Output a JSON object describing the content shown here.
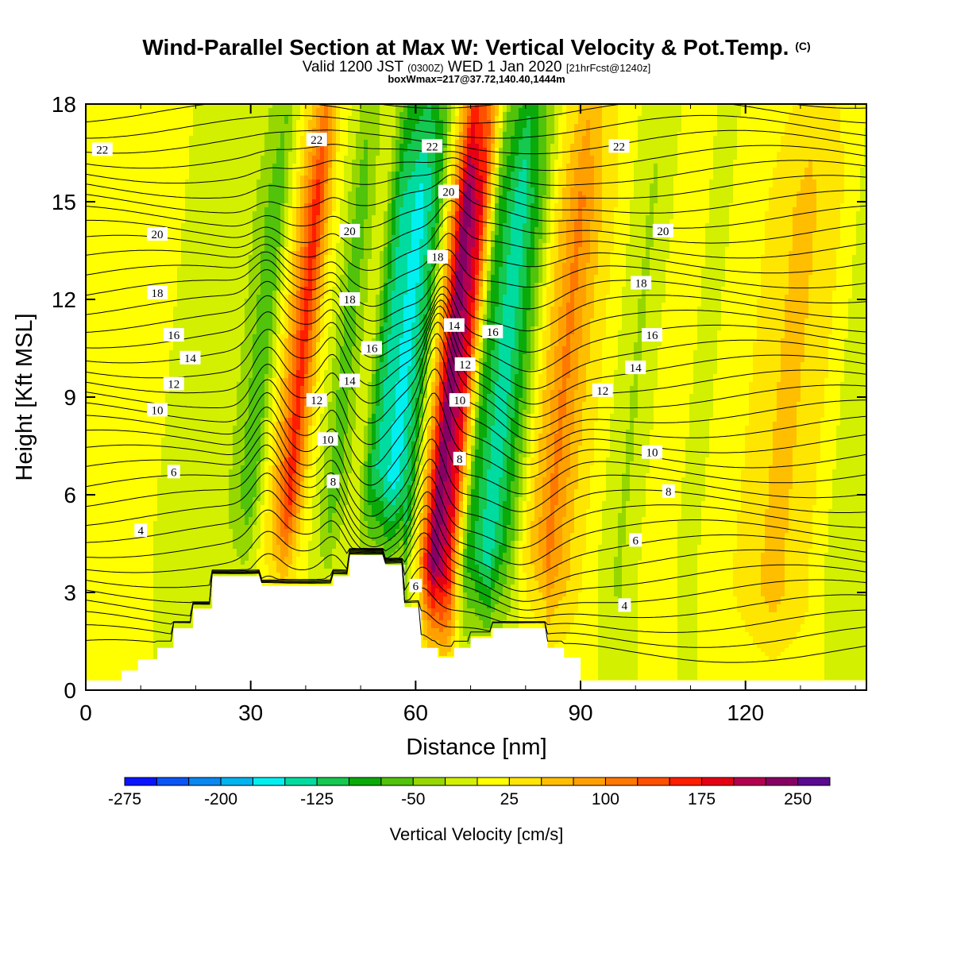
{
  "header": {
    "title": "Wind-Parallel Section at Max W: Vertical Velocity & Pot.Temp.",
    "title_mark": "(C)",
    "valid_prefix": "Valid 1200 JST",
    "valid_zulu": "(0300Z)",
    "valid_date": "WED 1 Jan 2020",
    "forecast": "[21hrFcst@1240z]",
    "box_info": "boxWmax=217@37.72,140.40,1444m"
  },
  "colors": {
    "terrain": "#ffffff",
    "contour": "#000000",
    "palette": [
      "#0a14ff",
      "#0a55f5",
      "#0a87f0",
      "#00b4f0",
      "#00f0f0",
      "#00dca0",
      "#14c850",
      "#0aaa0a",
      "#50c30a",
      "#96d700",
      "#d2f000",
      "#ffff00",
      "#ffe600",
      "#ffbe00",
      "#ffa000",
      "#ff7800",
      "#ff5000",
      "#ff1e00",
      "#e60014",
      "#b40050",
      "#870064",
      "#5a0a91"
    ]
  },
  "chart_data": {
    "type": "heatmap",
    "xlabel": "Distance [nm]",
    "ylabel": "Height [Kft MSL]",
    "xlim": [
      0,
      142
    ],
    "ylim": [
      0,
      18
    ],
    "x_ticks": [
      0,
      30,
      60,
      90,
      120
    ],
    "y_ticks": [
      0,
      3,
      6,
      9,
      12,
      15,
      18
    ],
    "colorbar": {
      "label": "Vertical Velocity [cm/s]",
      "min": -275,
      "max": 275,
      "step": 25,
      "tick_labels": [
        "-275",
        "-200",
        "-125",
        "-50",
        "25",
        "100",
        "175",
        "250"
      ]
    },
    "vertical_velocity_bands": [
      {
        "x": 0,
        "w": 10
      },
      {
        "x": 12,
        "w": 0
      },
      {
        "x": 24,
        "w": -15
      },
      {
        "x": 29,
        "w": -75
      },
      {
        "x": 33,
        "w": 60
      },
      {
        "x": 36,
        "w": 170
      },
      {
        "x": 39,
        "w": 30
      },
      {
        "x": 44,
        "w": -70
      },
      {
        "x": 48,
        "w": 0
      },
      {
        "x": 51,
        "w": -120
      },
      {
        "x": 55,
        "w": -165
      },
      {
        "x": 58,
        "w": -90
      },
      {
        "x": 61,
        "w": 100
      },
      {
        "x": 63,
        "w": 250
      },
      {
        "x": 66,
        "w": 180
      },
      {
        "x": 69,
        "w": -70
      },
      {
        "x": 73,
        "w": -150
      },
      {
        "x": 77,
        "w": -60
      },
      {
        "x": 80,
        "w": 40
      },
      {
        "x": 84,
        "w": 110
      },
      {
        "x": 88,
        "w": 50
      },
      {
        "x": 92,
        "w": 10
      },
      {
        "x": 97,
        "w": -30
      },
      {
        "x": 102,
        "w": 10
      },
      {
        "x": 110,
        "w": -5
      },
      {
        "x": 118,
        "w": 25
      },
      {
        "x": 125,
        "w": 60
      },
      {
        "x": 131,
        "w": 30
      },
      {
        "x": 137,
        "w": -20
      },
      {
        "x": 142,
        "w": -10
      }
    ],
    "terrain_profile": [
      [
        0,
        0.3
      ],
      [
        6.5,
        0.3
      ],
      [
        6.5,
        0.6
      ],
      [
        9.5,
        0.6
      ],
      [
        9.5,
        0.95
      ],
      [
        13,
        0.95
      ],
      [
        13,
        1.3
      ],
      [
        16,
        1.3
      ],
      [
        16,
        1.9
      ],
      [
        19.5,
        1.9
      ],
      [
        19.5,
        2.5
      ],
      [
        23,
        2.5
      ],
      [
        23,
        3.5
      ],
      [
        32,
        3.5
      ],
      [
        32,
        3.2
      ],
      [
        45,
        3.2
      ],
      [
        45,
        3.5
      ],
      [
        48,
        3.5
      ],
      [
        48,
        4.15
      ],
      [
        54.5,
        4.15
      ],
      [
        54.5,
        3.85
      ],
      [
        58,
        3.85
      ],
      [
        58,
        2.55
      ],
      [
        61,
        2.55
      ],
      [
        61,
        1.3
      ],
      [
        64,
        1.3
      ],
      [
        64,
        1.0
      ],
      [
        67,
        1.0
      ],
      [
        67,
        1.3
      ],
      [
        70,
        1.3
      ],
      [
        70,
        1.6
      ],
      [
        74,
        1.6
      ],
      [
        74,
        1.9
      ],
      [
        84,
        1.9
      ],
      [
        84,
        1.3
      ],
      [
        87,
        1.3
      ],
      [
        87,
        1.0
      ],
      [
        90,
        1.0
      ],
      [
        90,
        0.3
      ],
      [
        142,
        0.3
      ]
    ],
    "potential_temperature_levels": [
      4,
      6,
      8,
      10,
      12,
      14,
      16,
      18,
      20,
      22
    ],
    "contour_labels": [
      {
        "text": "22",
        "x": 3,
        "y": 16.6
      },
      {
        "text": "20",
        "x": 13,
        "y": 14.0
      },
      {
        "text": "18",
        "x": 13,
        "y": 12.2
      },
      {
        "text": "16",
        "x": 16,
        "y": 10.9
      },
      {
        "text": "14",
        "x": 19,
        "y": 10.2
      },
      {
        "text": "12",
        "x": 16,
        "y": 9.4
      },
      {
        "text": "10",
        "x": 13,
        "y": 8.6
      },
      {
        "text": "6",
        "x": 16,
        "y": 6.7
      },
      {
        "text": "4",
        "x": 10,
        "y": 4.9
      },
      {
        "text": "22",
        "x": 42,
        "y": 16.9
      },
      {
        "text": "20",
        "x": 48,
        "y": 14.1
      },
      {
        "text": "18",
        "x": 48,
        "y": 12.0
      },
      {
        "text": "16",
        "x": 52,
        "y": 10.5
      },
      {
        "text": "14",
        "x": 48,
        "y": 9.5
      },
      {
        "text": "12",
        "x": 42,
        "y": 8.9
      },
      {
        "text": "10",
        "x": 44,
        "y": 7.7
      },
      {
        "text": "8",
        "x": 45,
        "y": 6.4
      },
      {
        "text": "22",
        "x": 63,
        "y": 16.7
      },
      {
        "text": "20",
        "x": 66,
        "y": 15.3
      },
      {
        "text": "18",
        "x": 64,
        "y": 13.3
      },
      {
        "text": "14",
        "x": 67,
        "y": 11.2
      },
      {
        "text": "16",
        "x": 74,
        "y": 11.0
      },
      {
        "text": "12",
        "x": 69,
        "y": 10.0
      },
      {
        "text": "10",
        "x": 68,
        "y": 8.9
      },
      {
        "text": "8",
        "x": 68,
        "y": 7.1
      },
      {
        "text": "6",
        "x": 60,
        "y": 3.2
      },
      {
        "text": "22",
        "x": 97,
        "y": 16.7
      },
      {
        "text": "20",
        "x": 105,
        "y": 14.1
      },
      {
        "text": "18",
        "x": 101,
        "y": 12.5
      },
      {
        "text": "16",
        "x": 103,
        "y": 10.9
      },
      {
        "text": "14",
        "x": 100,
        "y": 9.9
      },
      {
        "text": "12",
        "x": 94,
        "y": 9.2
      },
      {
        "text": "10",
        "x": 103,
        "y": 7.3
      },
      {
        "text": "8",
        "x": 106,
        "y": 6.1
      },
      {
        "text": "6",
        "x": 100,
        "y": 4.6
      },
      {
        "text": "4",
        "x": 98,
        "y": 2.6
      }
    ]
  }
}
